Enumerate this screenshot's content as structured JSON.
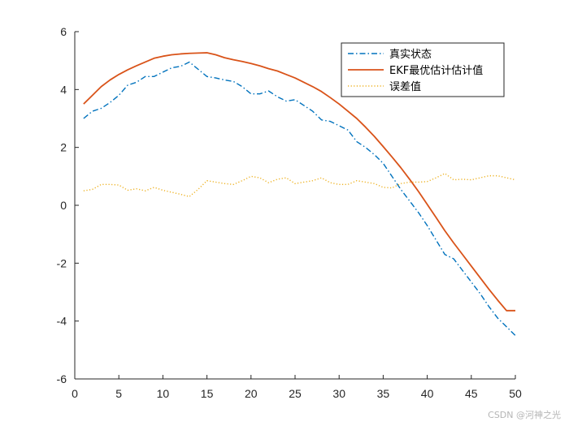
{
  "chart_data": {
    "type": "line",
    "title": "",
    "xlabel": "",
    "ylabel": "",
    "xlim": [
      0,
      50
    ],
    "ylim": [
      -6,
      6
    ],
    "xticks": [
      0,
      5,
      10,
      15,
      20,
      25,
      30,
      35,
      40,
      45,
      50
    ],
    "yticks": [
      -6,
      -4,
      -2,
      0,
      2,
      4,
      6
    ],
    "grid": false,
    "legend_position": "top-right",
    "x": [
      1,
      2,
      3,
      4,
      5,
      6,
      7,
      8,
      9,
      10,
      11,
      12,
      13,
      14,
      15,
      16,
      17,
      18,
      19,
      20,
      21,
      22,
      23,
      24,
      25,
      26,
      27,
      28,
      29,
      30,
      31,
      32,
      33,
      34,
      35,
      36,
      37,
      38,
      39,
      40,
      41,
      42,
      43,
      44,
      45,
      46,
      47,
      48,
      49,
      50
    ],
    "series": [
      {
        "name": "真实状态",
        "color": "#0072BD",
        "style": "dashdot",
        "values": [
          3.0,
          3.25,
          3.35,
          3.55,
          3.8,
          4.15,
          4.25,
          4.45,
          4.45,
          4.6,
          4.75,
          4.8,
          4.95,
          4.7,
          4.45,
          4.4,
          4.33,
          4.28,
          4.1,
          3.85,
          3.85,
          3.95,
          3.75,
          3.6,
          3.65,
          3.45,
          3.25,
          2.95,
          2.9,
          2.75,
          2.6,
          2.2,
          2.0,
          1.75,
          1.45,
          1.0,
          0.55,
          0.15,
          -0.25,
          -0.7,
          -1.2,
          -1.7,
          -1.85,
          -2.25,
          -2.65,
          -3.05,
          -3.5,
          -3.9,
          -4.2,
          -4.5
        ]
      },
      {
        "name": "EKF最优估计估计值",
        "color": "#D95319",
        "style": "solid",
        "values": [
          3.5,
          3.8,
          4.1,
          4.33,
          4.52,
          4.68,
          4.82,
          4.95,
          5.08,
          5.15,
          5.2,
          5.23,
          5.25,
          5.26,
          5.27,
          5.2,
          5.1,
          5.03,
          4.97,
          4.9,
          4.82,
          4.72,
          4.64,
          4.52,
          4.4,
          4.25,
          4.1,
          3.93,
          3.72,
          3.5,
          3.25,
          3.0,
          2.7,
          2.38,
          2.03,
          1.67,
          1.3,
          0.9,
          0.48,
          0.03,
          -0.42,
          -0.88,
          -1.3,
          -1.7,
          -2.1,
          -2.5,
          -2.9,
          -3.28,
          -3.64,
          -3.64
        ]
      },
      {
        "name": "误差值",
        "color": "#EDB120",
        "style": "dotted",
        "values": [
          0.5,
          0.55,
          0.72,
          0.72,
          0.7,
          0.52,
          0.57,
          0.5,
          0.62,
          0.52,
          0.45,
          0.38,
          0.3,
          0.55,
          0.85,
          0.8,
          0.75,
          0.72,
          0.85,
          1.0,
          0.95,
          0.78,
          0.9,
          0.95,
          0.75,
          0.8,
          0.85,
          0.95,
          0.78,
          0.72,
          0.72,
          0.85,
          0.8,
          0.75,
          0.62,
          0.6,
          0.75,
          0.8,
          0.8,
          0.82,
          0.95,
          1.1,
          0.88,
          0.9,
          0.88,
          0.95,
          1.02,
          1.02,
          0.95,
          0.88
        ]
      }
    ]
  },
  "watermark": "CSDN @河神之光"
}
